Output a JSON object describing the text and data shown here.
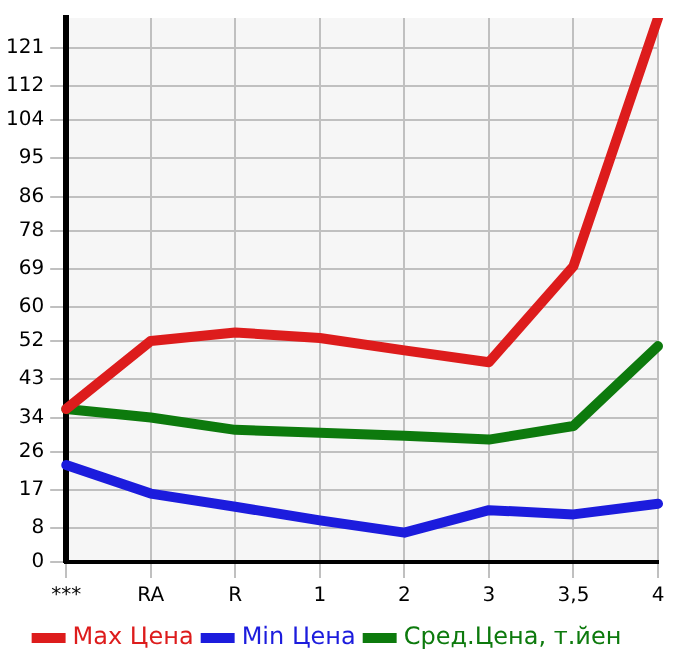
{
  "chart_data": {
    "type": "line",
    "categories": [
      "***",
      "RA",
      "R",
      "1",
      "2",
      "3",
      "3,5",
      "4"
    ],
    "series": [
      {
        "name": "Max Цена",
        "color": "#dd1c1c",
        "values": [
          36,
          52,
          54,
          52.7,
          49.8,
          47,
          69.6,
          128
        ]
      },
      {
        "name": "Min Цена",
        "color": "#1c1cdd",
        "values": [
          22.8,
          16.1,
          13,
          9.8,
          6.9,
          12.2,
          11.2,
          13.7
        ]
      },
      {
        "name": "Сред.Цена, т.йен",
        "color": "#0d7a0d",
        "values": [
          36,
          34,
          31.1,
          30.4,
          29.7,
          28.8,
          32,
          50.8
        ]
      }
    ],
    "ylim": [
      0,
      128
    ],
    "yticks": [
      0,
      8,
      17,
      26,
      34,
      43,
      52,
      60,
      69,
      78,
      86,
      95,
      104,
      112,
      121
    ],
    "grid": true,
    "legend": "bottom",
    "marker": "none",
    "line_style": "solid"
  }
}
